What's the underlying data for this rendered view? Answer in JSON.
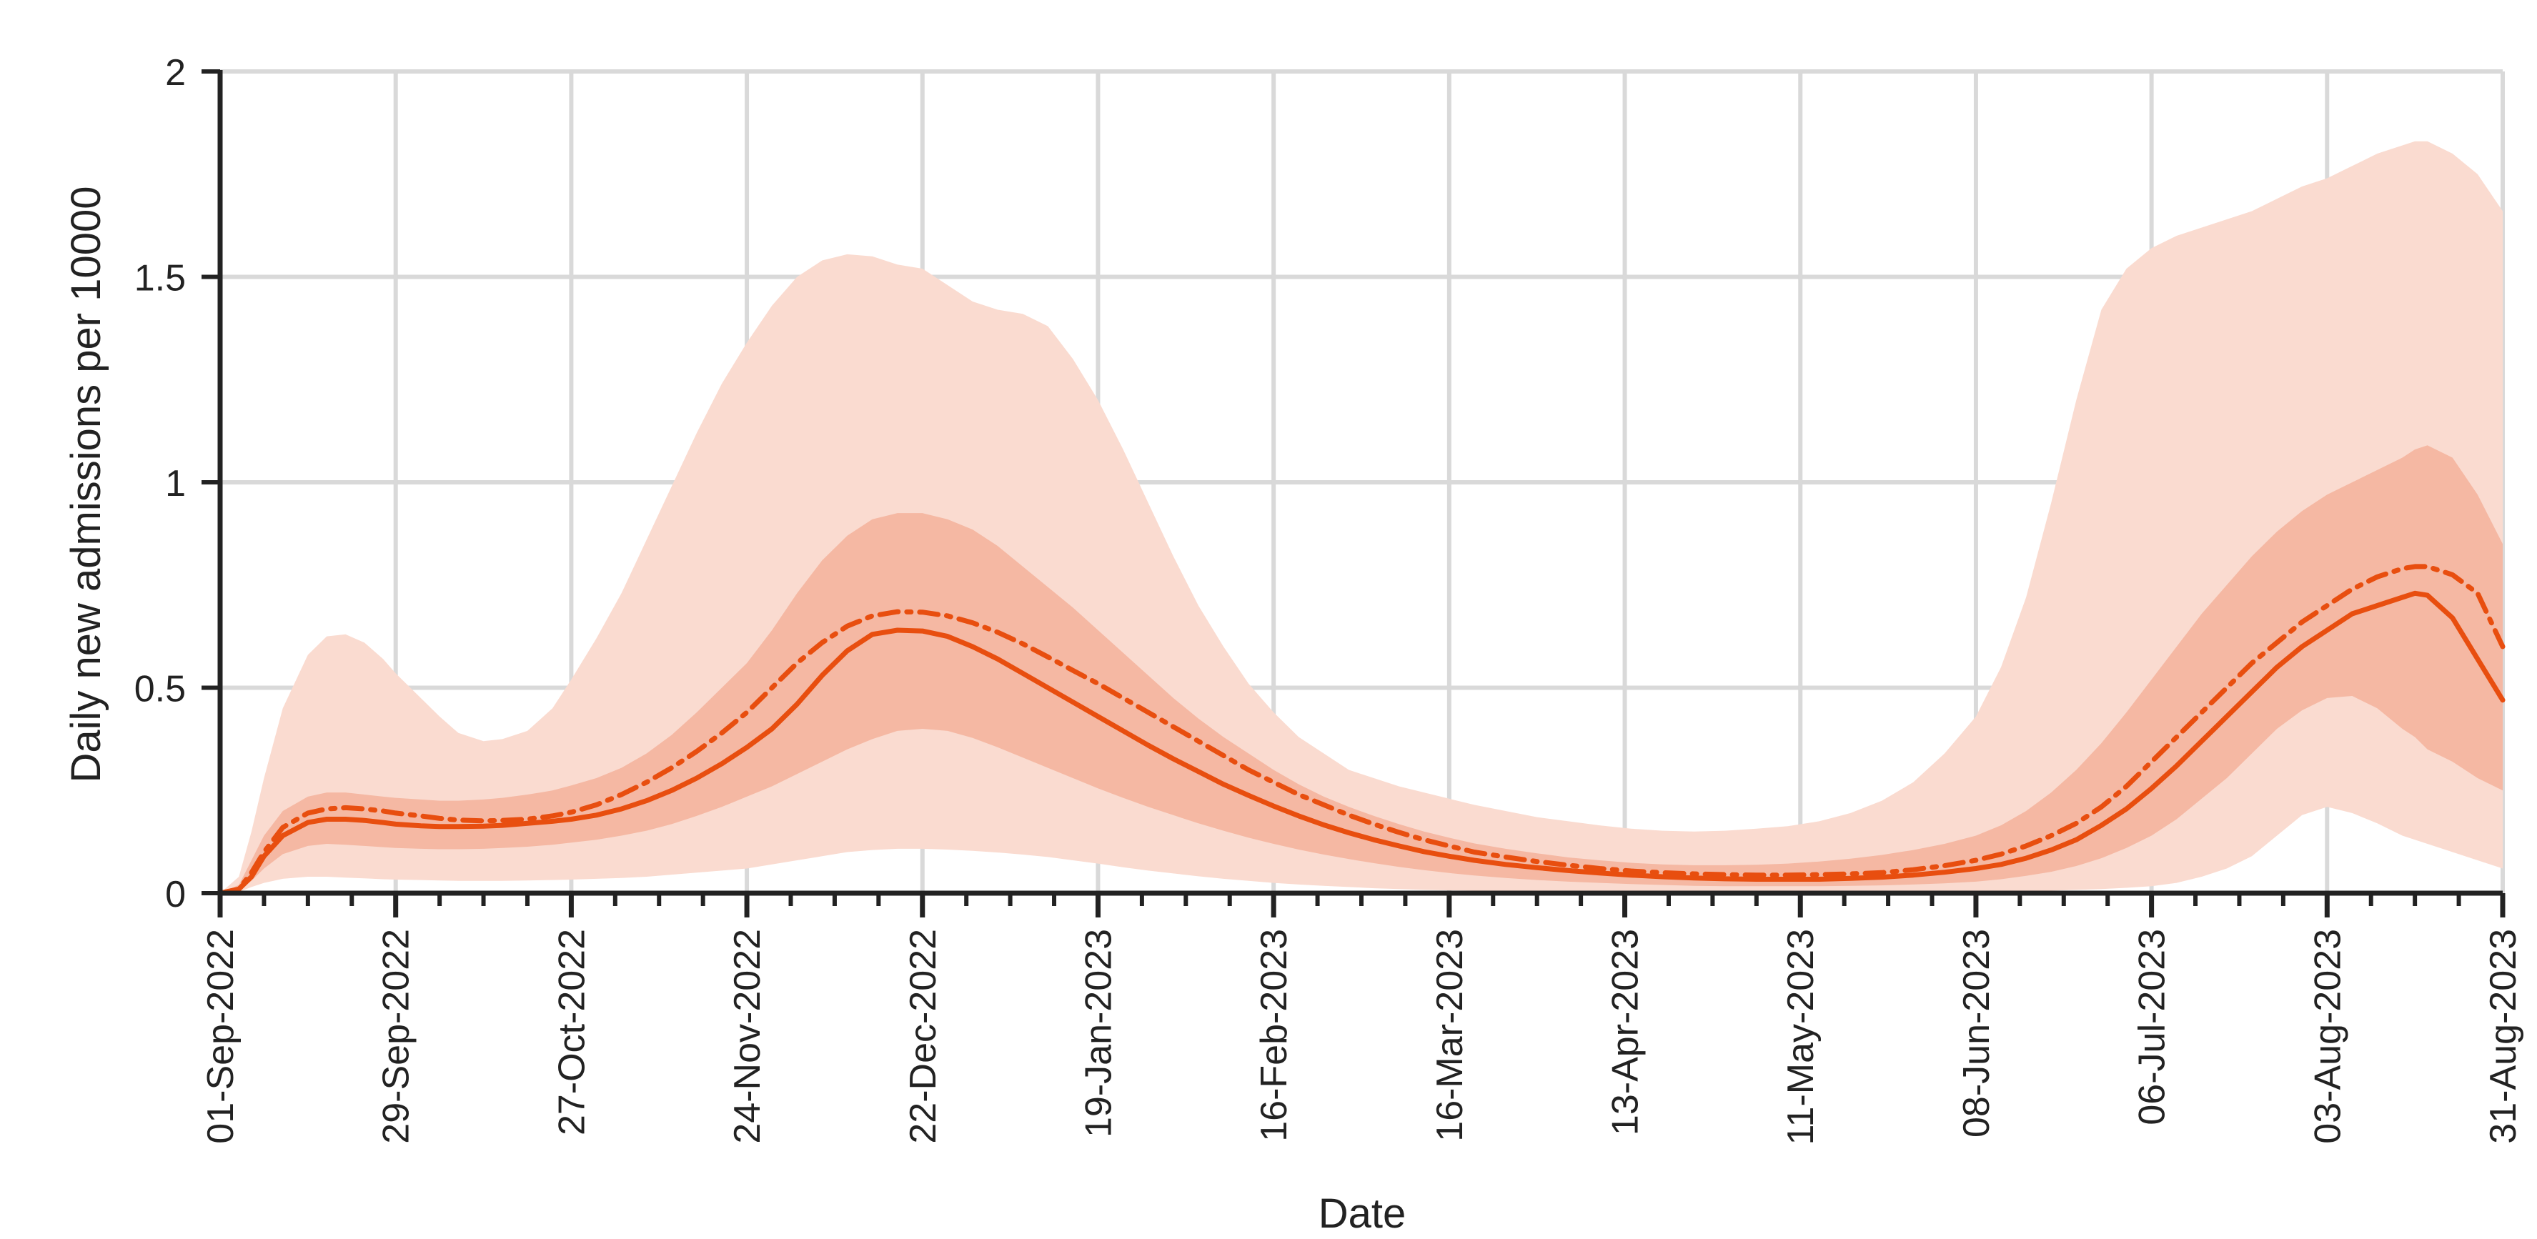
{
  "chart_data": {
    "type": "line",
    "title": "",
    "xlabel": "Date",
    "ylabel": "Daily new admissions  per 10000",
    "ylim": [
      0,
      2
    ],
    "xlim_days": [
      0,
      364
    ],
    "grid": true,
    "y_ticks": [
      0,
      0.5,
      1,
      1.5,
      2
    ],
    "y_tick_labels": [
      "0",
      "0.5",
      "1",
      "1.5",
      "2"
    ],
    "x_ticks": [
      {
        "day": 0,
        "label": "01-Sep-2022"
      },
      {
        "day": 28,
        "label": "29-Sep-2022"
      },
      {
        "day": 56,
        "label": "27-Oct-2022"
      },
      {
        "day": 84,
        "label": "24-Nov-2022"
      },
      {
        "day": 112,
        "label": "22-Dec-2022"
      },
      {
        "day": 140,
        "label": "19-Jan-2023"
      },
      {
        "day": 168,
        "label": "16-Feb-2023"
      },
      {
        "day": 196,
        "label": "16-Mar-2023"
      },
      {
        "day": 224,
        "label": "13-Apr-2023"
      },
      {
        "day": 252,
        "label": "11-May-2023"
      },
      {
        "day": 280,
        "label": "08-Jun-2023"
      },
      {
        "day": 308,
        "label": "06-Jul-2023"
      },
      {
        "day": 336,
        "label": "03-Aug-2023"
      },
      {
        "day": 364,
        "label": "31-Aug-2023"
      }
    ],
    "minor_tick_step_days": 7,
    "colors": {
      "line": "#e84e0f",
      "band_outer": "#fadbd0",
      "band_inner": "#f5b8a3",
      "grid": "#d9d9d9",
      "axis": "#222222"
    },
    "x": [
      0,
      3,
      5,
      7,
      10,
      14,
      17,
      20,
      23,
      26,
      28,
      32,
      35,
      38,
      42,
      45,
      49,
      53,
      56,
      60,
      64,
      68,
      72,
      76,
      80,
      84,
      88,
      92,
      96,
      100,
      104,
      108,
      112,
      116,
      120,
      124,
      128,
      132,
      136,
      140,
      144,
      148,
      152,
      156,
      160,
      164,
      168,
      172,
      176,
      180,
      184,
      188,
      192,
      196,
      200,
      205,
      210,
      215,
      220,
      225,
      230,
      235,
      240,
      245,
      250,
      255,
      260,
      265,
      270,
      275,
      280,
      284,
      288,
      292,
      296,
      300,
      304,
      308,
      312,
      316,
      320,
      324,
      328,
      332,
      336,
      340,
      344,
      348,
      350,
      352,
      356,
      360,
      364
    ],
    "series": [
      {
        "name": "Mean",
        "style": "dashdot",
        "values": [
          0,
          0.01,
          0.05,
          0.1,
          0.16,
          0.195,
          0.205,
          0.208,
          0.205,
          0.2,
          0.195,
          0.188,
          0.182,
          0.178,
          0.176,
          0.177,
          0.18,
          0.188,
          0.197,
          0.215,
          0.24,
          0.27,
          0.305,
          0.345,
          0.39,
          0.44,
          0.5,
          0.56,
          0.61,
          0.65,
          0.675,
          0.685,
          0.684,
          0.675,
          0.658,
          0.635,
          0.607,
          0.575,
          0.542,
          0.51,
          0.475,
          0.44,
          0.405,
          0.37,
          0.335,
          0.3,
          0.27,
          0.24,
          0.215,
          0.19,
          0.168,
          0.148,
          0.13,
          0.115,
          0.1,
          0.088,
          0.077,
          0.068,
          0.06,
          0.054,
          0.05,
          0.047,
          0.045,
          0.044,
          0.044,
          0.045,
          0.047,
          0.05,
          0.057,
          0.067,
          0.08,
          0.095,
          0.115,
          0.14,
          0.17,
          0.21,
          0.26,
          0.32,
          0.38,
          0.44,
          0.5,
          0.56,
          0.61,
          0.66,
          0.7,
          0.74,
          0.77,
          0.79,
          0.795,
          0.795,
          0.775,
          0.73,
          0.6
        ]
      },
      {
        "name": "Median",
        "style": "solid",
        "values": [
          0,
          0.01,
          0.04,
          0.09,
          0.14,
          0.172,
          0.18,
          0.18,
          0.177,
          0.172,
          0.168,
          0.164,
          0.162,
          0.162,
          0.163,
          0.165,
          0.17,
          0.175,
          0.18,
          0.19,
          0.205,
          0.225,
          0.25,
          0.28,
          0.315,
          0.355,
          0.4,
          0.46,
          0.53,
          0.59,
          0.63,
          0.64,
          0.638,
          0.625,
          0.6,
          0.57,
          0.535,
          0.5,
          0.465,
          0.43,
          0.395,
          0.36,
          0.327,
          0.296,
          0.265,
          0.238,
          0.212,
          0.188,
          0.166,
          0.147,
          0.13,
          0.115,
          0.101,
          0.09,
          0.08,
          0.07,
          0.062,
          0.055,
          0.049,
          0.044,
          0.04,
          0.037,
          0.035,
          0.034,
          0.034,
          0.034,
          0.036,
          0.039,
          0.044,
          0.051,
          0.06,
          0.07,
          0.085,
          0.105,
          0.13,
          0.165,
          0.205,
          0.255,
          0.31,
          0.37,
          0.43,
          0.49,
          0.55,
          0.6,
          0.64,
          0.68,
          0.7,
          0.72,
          0.73,
          0.725,
          0.67,
          0.57,
          0.47
        ]
      }
    ],
    "bands": [
      {
        "name": "Outer interval",
        "lower": [
          0,
          0.003,
          0.015,
          0.025,
          0.035,
          0.04,
          0.04,
          0.038,
          0.036,
          0.034,
          0.033,
          0.032,
          0.031,
          0.03,
          0.03,
          0.03,
          0.031,
          0.032,
          0.033,
          0.035,
          0.037,
          0.04,
          0.045,
          0.05,
          0.055,
          0.06,
          0.07,
          0.08,
          0.09,
          0.1,
          0.105,
          0.108,
          0.108,
          0.106,
          0.103,
          0.099,
          0.094,
          0.088,
          0.08,
          0.072,
          0.063,
          0.055,
          0.048,
          0.041,
          0.035,
          0.03,
          0.025,
          0.021,
          0.018,
          0.015,
          0.012,
          0.01,
          0.008,
          0.007,
          0.006,
          0.005,
          0.004,
          0.003,
          0.003,
          0.002,
          0.002,
          0.002,
          0.002,
          0.002,
          0.002,
          0.002,
          0.002,
          0.002,
          0.002,
          0.002,
          0.003,
          0.004,
          0.005,
          0.006,
          0.008,
          0.01,
          0.013,
          0.017,
          0.025,
          0.04,
          0.06,
          0.09,
          0.14,
          0.19,
          0.21,
          0.195,
          0.17,
          0.14,
          0.13,
          0.12,
          0.1,
          0.08,
          0.06
        ],
        "upper": [
          0,
          0.04,
          0.15,
          0.28,
          0.45,
          0.58,
          0.625,
          0.63,
          0.61,
          0.57,
          0.535,
          0.475,
          0.43,
          0.39,
          0.37,
          0.375,
          0.395,
          0.45,
          0.52,
          0.62,
          0.73,
          0.86,
          0.99,
          1.12,
          1.24,
          1.34,
          1.43,
          1.5,
          1.54,
          1.555,
          1.55,
          1.53,
          1.52,
          1.48,
          1.44,
          1.42,
          1.41,
          1.38,
          1.3,
          1.2,
          1.08,
          0.95,
          0.82,
          0.7,
          0.6,
          0.51,
          0.44,
          0.38,
          0.34,
          0.3,
          0.28,
          0.26,
          0.245,
          0.23,
          0.215,
          0.2,
          0.185,
          0.175,
          0.165,
          0.157,
          0.152,
          0.15,
          0.152,
          0.157,
          0.163,
          0.175,
          0.195,
          0.225,
          0.27,
          0.34,
          0.43,
          0.55,
          0.72,
          0.95,
          1.2,
          1.42,
          1.52,
          1.57,
          1.6,
          1.62,
          1.64,
          1.66,
          1.69,
          1.72,
          1.74,
          1.77,
          1.8,
          1.82,
          1.83,
          1.83,
          1.8,
          1.75,
          1.66
        ]
      },
      {
        "name": "Inner interval",
        "lower": [
          0,
          0.005,
          0.03,
          0.06,
          0.095,
          0.115,
          0.12,
          0.118,
          0.115,
          0.112,
          0.11,
          0.108,
          0.107,
          0.107,
          0.108,
          0.11,
          0.113,
          0.118,
          0.123,
          0.13,
          0.14,
          0.152,
          0.168,
          0.188,
          0.21,
          0.235,
          0.26,
          0.29,
          0.32,
          0.35,
          0.375,
          0.395,
          0.4,
          0.395,
          0.378,
          0.355,
          0.33,
          0.305,
          0.28,
          0.255,
          0.232,
          0.21,
          0.19,
          0.17,
          0.152,
          0.135,
          0.12,
          0.106,
          0.094,
          0.083,
          0.073,
          0.064,
          0.056,
          0.049,
          0.043,
          0.037,
          0.032,
          0.028,
          0.025,
          0.022,
          0.02,
          0.018,
          0.017,
          0.017,
          0.017,
          0.017,
          0.018,
          0.019,
          0.021,
          0.024,
          0.028,
          0.034,
          0.042,
          0.052,
          0.066,
          0.085,
          0.11,
          0.14,
          0.18,
          0.23,
          0.28,
          0.34,
          0.4,
          0.445,
          0.475,
          0.48,
          0.45,
          0.4,
          0.38,
          0.35,
          0.32,
          0.28,
          0.25
        ],
        "upper": [
          0,
          0.02,
          0.08,
          0.14,
          0.2,
          0.235,
          0.245,
          0.245,
          0.24,
          0.235,
          0.232,
          0.228,
          0.225,
          0.225,
          0.228,
          0.232,
          0.24,
          0.25,
          0.262,
          0.28,
          0.305,
          0.34,
          0.385,
          0.44,
          0.5,
          0.56,
          0.64,
          0.73,
          0.81,
          0.87,
          0.91,
          0.925,
          0.925,
          0.91,
          0.885,
          0.845,
          0.795,
          0.745,
          0.695,
          0.64,
          0.585,
          0.53,
          0.475,
          0.425,
          0.38,
          0.34,
          0.3,
          0.265,
          0.235,
          0.21,
          0.188,
          0.168,
          0.15,
          0.135,
          0.121,
          0.108,
          0.097,
          0.087,
          0.08,
          0.074,
          0.07,
          0.068,
          0.068,
          0.069,
          0.072,
          0.077,
          0.084,
          0.093,
          0.105,
          0.12,
          0.14,
          0.165,
          0.2,
          0.245,
          0.3,
          0.365,
          0.44,
          0.52,
          0.6,
          0.68,
          0.75,
          0.82,
          0.88,
          0.93,
          0.97,
          1.0,
          1.03,
          1.06,
          1.08,
          1.09,
          1.06,
          0.97,
          0.85
        ]
      }
    ]
  }
}
